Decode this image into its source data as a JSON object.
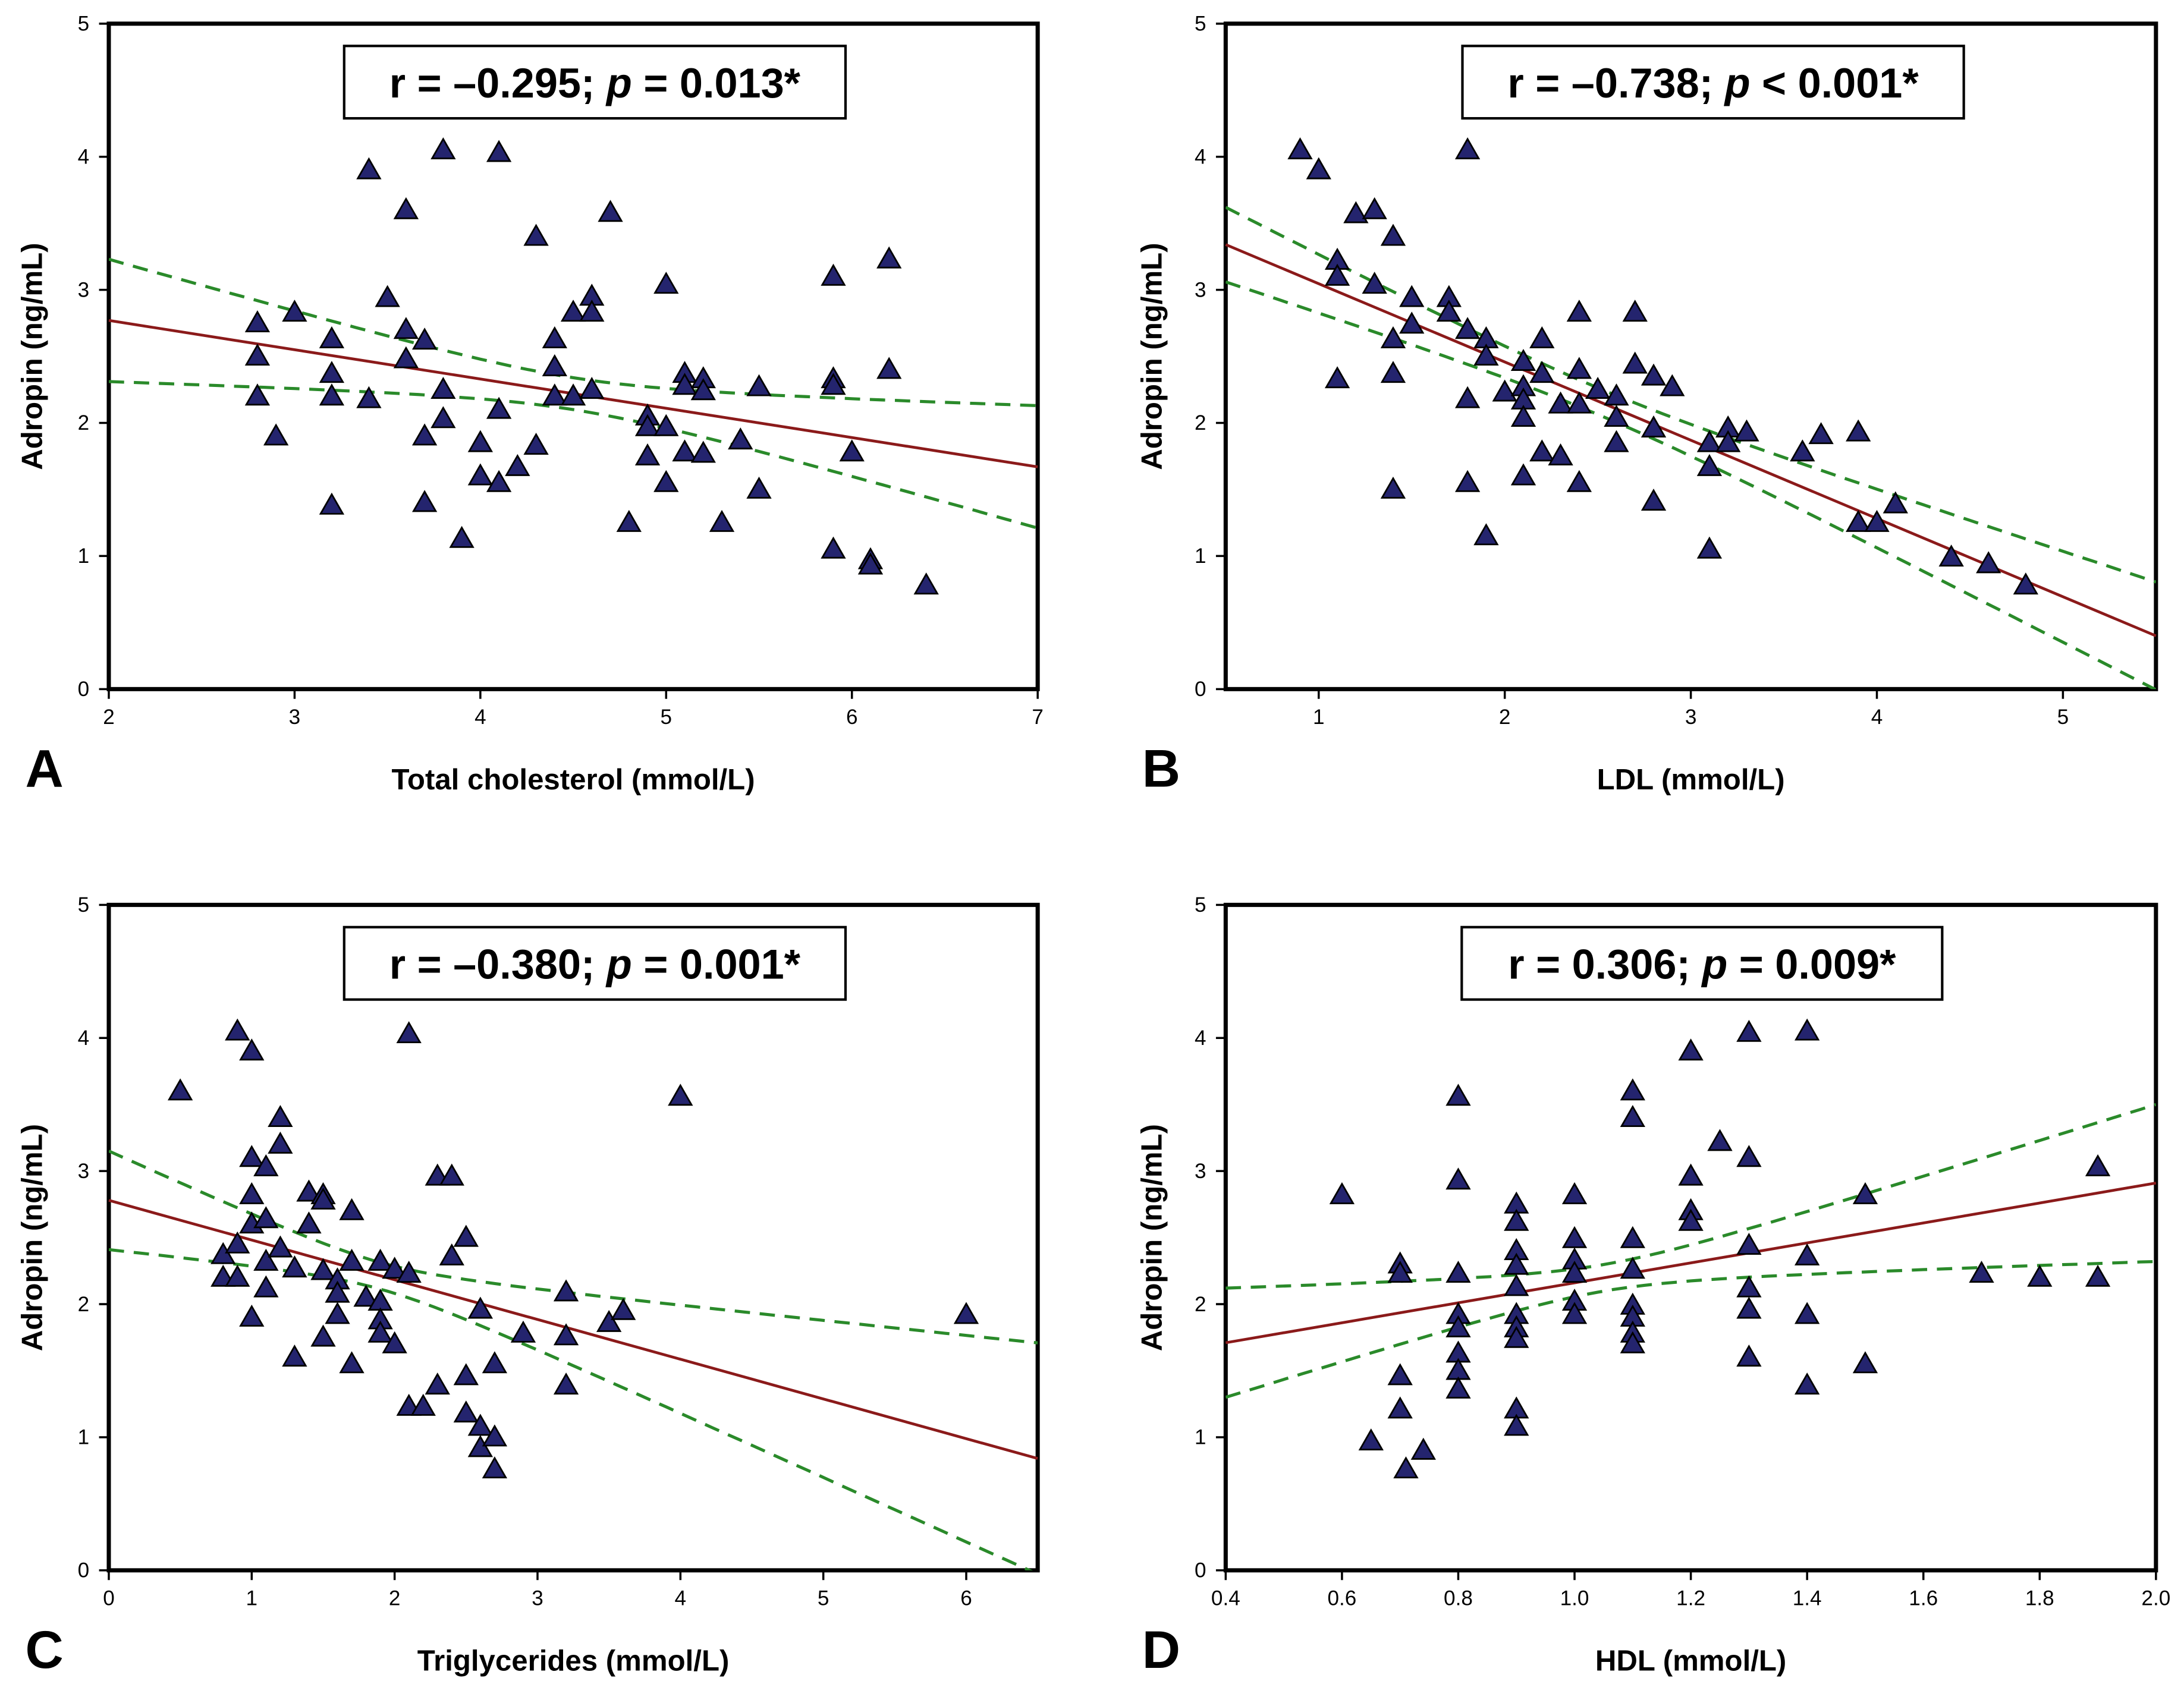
{
  "colors": {
    "marker": "#24246e",
    "marker_edge": "#000000",
    "regression": "#8b1a1a",
    "ci": "#2a8a2a"
  },
  "chart_data": [
    {
      "panel": "A",
      "type": "scatter",
      "xlabel": "Total cholesterol (mmol/L)",
      "ylabel": "Adropin (ng/mL)",
      "xlim": [
        2,
        7
      ],
      "ylim": [
        0,
        5
      ],
      "x_ticks": [
        "2",
        "3",
        "4",
        "5",
        "6",
        "7"
      ],
      "y_ticks": [
        "0",
        "1",
        "2",
        "3",
        "4",
        "5"
      ],
      "annotation": {
        "r_text": "r = –0.295; ",
        "p_symbol": "p",
        "p_text": " = 0.013*"
      },
      "regression": {
        "x": [
          2,
          7
        ],
        "y": [
          2.77,
          1.67
        ]
      },
      "ci_model": {
        "x_mean": 4.5,
        "min_half_width": 0.12,
        "k": 0.0315
      },
      "points": [
        [
          2.8,
          2.75
        ],
        [
          2.8,
          2.5
        ],
        [
          2.8,
          2.2
        ],
        [
          2.9,
          1.9
        ],
        [
          3.0,
          2.83
        ],
        [
          3.2,
          2.63
        ],
        [
          3.2,
          2.37
        ],
        [
          3.2,
          2.2
        ],
        [
          3.2,
          1.38
        ],
        [
          3.4,
          3.9
        ],
        [
          3.4,
          2.18
        ],
        [
          3.5,
          2.94
        ],
        [
          3.6,
          3.6
        ],
        [
          3.6,
          2.7
        ],
        [
          3.6,
          2.48
        ],
        [
          3.7,
          2.62
        ],
        [
          3.7,
          1.9
        ],
        [
          3.7,
          1.4
        ],
        [
          3.8,
          4.05
        ],
        [
          3.8,
          2.25
        ],
        [
          3.8,
          2.03
        ],
        [
          3.9,
          1.13
        ],
        [
          4.0,
          1.85
        ],
        [
          4.0,
          1.6
        ],
        [
          4.1,
          2.1
        ],
        [
          4.1,
          1.55
        ],
        [
          4.1,
          4.03
        ],
        [
          4.2,
          1.67
        ],
        [
          4.3,
          3.4
        ],
        [
          4.3,
          1.83
        ],
        [
          4.4,
          2.63
        ],
        [
          4.4,
          2.42
        ],
        [
          4.4,
          2.2
        ],
        [
          4.5,
          2.83
        ],
        [
          4.5,
          2.2
        ],
        [
          4.6,
          2.95
        ],
        [
          4.6,
          2.83
        ],
        [
          4.6,
          2.25
        ],
        [
          4.7,
          3.58
        ],
        [
          4.8,
          1.25
        ],
        [
          4.9,
          2.05
        ],
        [
          4.9,
          1.97
        ],
        [
          4.9,
          1.75
        ],
        [
          5.0,
          3.04
        ],
        [
          5.0,
          1.97
        ],
        [
          5.0,
          1.55
        ],
        [
          5.1,
          2.37
        ],
        [
          5.1,
          2.28
        ],
        [
          5.1,
          1.78
        ],
        [
          5.2,
          2.33
        ],
        [
          5.2,
          2.24
        ],
        [
          5.2,
          1.77
        ],
        [
          5.3,
          1.25
        ],
        [
          5.4,
          1.87
        ],
        [
          5.5,
          2.27
        ],
        [
          5.5,
          1.5
        ],
        [
          5.9,
          3.1
        ],
        [
          5.9,
          2.33
        ],
        [
          5.9,
          2.28
        ],
        [
          5.9,
          1.05
        ],
        [
          6.0,
          1.78
        ],
        [
          6.1,
          0.97
        ],
        [
          6.1,
          0.93
        ],
        [
          6.2,
          3.23
        ],
        [
          6.2,
          2.4
        ],
        [
          6.4,
          0.78
        ]
      ]
    },
    {
      "panel": "B",
      "type": "scatter",
      "xlabel": "LDL (mmol/L)",
      "ylabel": "Adropin (ng/mL)",
      "xlim": [
        0.5,
        5.5
      ],
      "ylim": [
        0,
        5
      ],
      "x_tick_values": [
        1,
        2,
        3,
        4,
        5
      ],
      "x_ticks": [
        "1",
        "2",
        "3",
        "4",
        "5"
      ],
      "y_ticks": [
        "0",
        "1",
        "2",
        "3",
        "4",
        "5"
      ],
      "annotation": {
        "r_text": "r = –0.738; ",
        "p_symbol": "p",
        "p_text": " < 0.001*"
      },
      "regression": {
        "x": [
          0.5,
          5.5
        ],
        "y": [
          3.34,
          0.4
        ]
      },
      "ci_model": {
        "x_mean": 2.5,
        "min_half_width": 0.1,
        "k": 0.0171
      },
      "points": [
        [
          0.9,
          4.05
        ],
        [
          1.0,
          3.9
        ],
        [
          1.1,
          3.22
        ],
        [
          1.1,
          3.1
        ],
        [
          1.1,
          2.33
        ],
        [
          1.2,
          3.57
        ],
        [
          1.3,
          3.6
        ],
        [
          1.3,
          3.04
        ],
        [
          1.4,
          3.4
        ],
        [
          1.4,
          2.63
        ],
        [
          1.4,
          2.37
        ],
        [
          1.4,
          1.5
        ],
        [
          1.5,
          2.94
        ],
        [
          1.5,
          2.74
        ],
        [
          1.7,
          2.94
        ],
        [
          1.7,
          2.83
        ],
        [
          1.8,
          4.05
        ],
        [
          1.8,
          2.7
        ],
        [
          1.8,
          2.18
        ],
        [
          1.8,
          1.55
        ],
        [
          1.9,
          2.63
        ],
        [
          1.9,
          2.5
        ],
        [
          1.9,
          1.15
        ],
        [
          2.0,
          2.23
        ],
        [
          2.1,
          2.46
        ],
        [
          2.1,
          2.27
        ],
        [
          2.1,
          2.17
        ],
        [
          2.1,
          2.04
        ],
        [
          2.1,
          1.6
        ],
        [
          2.2,
          2.63
        ],
        [
          2.2,
          2.37
        ],
        [
          2.2,
          1.78
        ],
        [
          2.3,
          2.14
        ],
        [
          2.3,
          1.75
        ],
        [
          2.4,
          2.83
        ],
        [
          2.4,
          2.4
        ],
        [
          2.4,
          2.14
        ],
        [
          2.4,
          1.55
        ],
        [
          2.5,
          2.25
        ],
        [
          2.6,
          2.2
        ],
        [
          2.6,
          2.04
        ],
        [
          2.6,
          1.85
        ],
        [
          2.7,
          2.83
        ],
        [
          2.7,
          2.44
        ],
        [
          2.8,
          2.35
        ],
        [
          2.8,
          1.96
        ],
        [
          2.8,
          1.41
        ],
        [
          2.9,
          2.27
        ],
        [
          3.1,
          1.85
        ],
        [
          3.1,
          1.67
        ],
        [
          3.1,
          1.05
        ],
        [
          3.2,
          1.96
        ],
        [
          3.2,
          1.85
        ],
        [
          3.3,
          1.93
        ],
        [
          3.6,
          1.78
        ],
        [
          3.7,
          1.91
        ],
        [
          3.9,
          1.93
        ],
        [
          3.9,
          1.25
        ],
        [
          4.0,
          1.25
        ],
        [
          4.1,
          1.39
        ],
        [
          4.4,
          0.99
        ],
        [
          4.6,
          0.94
        ],
        [
          4.8,
          0.78
        ]
      ]
    },
    {
      "panel": "C",
      "type": "scatter",
      "xlabel": "Triglycerides (mmol/L)",
      "ylabel": "Adropin (ng/mL)",
      "xlim": [
        0,
        6.5
      ],
      "ylim": [
        0,
        5
      ],
      "x_tick_values": [
        0,
        1,
        2,
        3,
        4,
        5,
        6
      ],
      "x_ticks": [
        "0",
        "1",
        "2",
        "3",
        "4",
        "5",
        "6"
      ],
      "y_ticks": [
        "0",
        "1",
        "2",
        "3",
        "4",
        "5"
      ],
      "annotation": {
        "r_text": "r = –0.380; ",
        "p_symbol": "p",
        "p_text": " = 0.001*"
      },
      "regression": {
        "x": [
          0,
          6.5
        ],
        "y": [
          2.78,
          0.84
        ]
      },
      "ci_model": {
        "x_mean": 1.9,
        "min_half_width": 0.1,
        "k": 0.0352
      },
      "points": [
        [
          0.5,
          3.6
        ],
        [
          0.8,
          2.37
        ],
        [
          0.8,
          2.2
        ],
        [
          0.9,
          4.05
        ],
        [
          0.9,
          2.2
        ],
        [
          0.9,
          2.45
        ],
        [
          1.0,
          3.9
        ],
        [
          1.0,
          3.1
        ],
        [
          1.0,
          2.82
        ],
        [
          1.0,
          2.6
        ],
        [
          1.0,
          1.9
        ],
        [
          1.1,
          3.03
        ],
        [
          1.1,
          2.64
        ],
        [
          1.1,
          2.32
        ],
        [
          1.1,
          2.12
        ],
        [
          1.2,
          3.4
        ],
        [
          1.2,
          3.2
        ],
        [
          1.2,
          2.42
        ],
        [
          1.3,
          2.27
        ],
        [
          1.3,
          1.6
        ],
        [
          1.4,
          2.84
        ],
        [
          1.4,
          2.6
        ],
        [
          1.5,
          2.82
        ],
        [
          1.5,
          2.78
        ],
        [
          1.5,
          2.25
        ],
        [
          1.5,
          1.75
        ],
        [
          1.6,
          2.18
        ],
        [
          1.6,
          2.08
        ],
        [
          1.6,
          1.92
        ],
        [
          1.7,
          2.7
        ],
        [
          1.7,
          2.32
        ],
        [
          1.7,
          1.55
        ],
        [
          1.8,
          2.05
        ],
        [
          1.9,
          2.32
        ],
        [
          1.9,
          2.02
        ],
        [
          1.9,
          1.88
        ],
        [
          1.9,
          1.78
        ],
        [
          2.0,
          2.26
        ],
        [
          2.0,
          1.7
        ],
        [
          2.1,
          4.03
        ],
        [
          2.1,
          2.23
        ],
        [
          2.1,
          1.23
        ],
        [
          2.2,
          1.23
        ],
        [
          2.3,
          2.96
        ],
        [
          2.3,
          1.39
        ],
        [
          2.4,
          2.96
        ],
        [
          2.4,
          2.36
        ],
        [
          2.5,
          2.5
        ],
        [
          2.5,
          1.46
        ],
        [
          2.5,
          1.18
        ],
        [
          2.6,
          1.96
        ],
        [
          2.6,
          1.08
        ],
        [
          2.6,
          0.92
        ],
        [
          2.7,
          1.55
        ],
        [
          2.7,
          1.0
        ],
        [
          2.7,
          0.76
        ],
        [
          2.9,
          1.78
        ],
        [
          3.2,
          2.09
        ],
        [
          3.2,
          1.76
        ],
        [
          3.2,
          1.39
        ],
        [
          3.5,
          1.86
        ],
        [
          3.6,
          1.95
        ],
        [
          4.0,
          3.56
        ],
        [
          6.0,
          1.92
        ]
      ]
    },
    {
      "panel": "D",
      "type": "scatter",
      "xlabel": "HDL (mmol/L)",
      "ylabel": "Adropin (ng/mL)",
      "xlim": [
        0.4,
        2.0
      ],
      "ylim": [
        0,
        5
      ],
      "x_tick_values": [
        0.4,
        0.6,
        0.8,
        1.0,
        1.2,
        1.4,
        1.6,
        1.8,
        2.0
      ],
      "x_ticks": [
        "0.4",
        "0.6",
        "0.8",
        "1.0",
        "1.2",
        "1.4",
        "1.6",
        "1.8",
        "2.0"
      ],
      "y_ticks": [
        "0",
        "1",
        "2",
        "3",
        "4",
        "5"
      ],
      "annotation": {
        "r_text": "r = 0.306; ",
        "p_symbol": "p",
        "p_text": " = 0.009*"
      },
      "regression": {
        "x": [
          0.4,
          2.0
        ],
        "y": [
          1.71,
          2.91
        ]
      },
      "ci_model": {
        "x_mean": 1.05,
        "min_half_width": 0.1,
        "k": 0.374
      },
      "points": [
        [
          0.6,
          2.82
        ],
        [
          0.65,
          0.97
        ],
        [
          0.7,
          2.3
        ],
        [
          0.7,
          2.23
        ],
        [
          0.7,
          1.46
        ],
        [
          0.7,
          1.21
        ],
        [
          0.71,
          0.76
        ],
        [
          0.74,
          0.9
        ],
        [
          0.8,
          3.56
        ],
        [
          0.8,
          2.93
        ],
        [
          0.8,
          2.23
        ],
        [
          0.8,
          1.92
        ],
        [
          0.8,
          1.82
        ],
        [
          0.8,
          1.63
        ],
        [
          0.8,
          1.5
        ],
        [
          0.8,
          1.36
        ],
        [
          0.9,
          2.75
        ],
        [
          0.9,
          2.62
        ],
        [
          0.9,
          2.4
        ],
        [
          0.9,
          2.29
        ],
        [
          0.9,
          2.13
        ],
        [
          0.9,
          1.92
        ],
        [
          0.9,
          1.82
        ],
        [
          0.9,
          1.74
        ],
        [
          0.9,
          1.21
        ],
        [
          0.9,
          1.08
        ],
        [
          1.0,
          2.82
        ],
        [
          1.0,
          2.49
        ],
        [
          1.0,
          2.33
        ],
        [
          1.0,
          2.23
        ],
        [
          1.0,
          2.02
        ],
        [
          1.0,
          1.92
        ],
        [
          1.1,
          3.6
        ],
        [
          1.1,
          3.4
        ],
        [
          1.1,
          2.49
        ],
        [
          1.1,
          2.26
        ],
        [
          1.1,
          1.99
        ],
        [
          1.1,
          1.9
        ],
        [
          1.1,
          1.78
        ],
        [
          1.1,
          1.7
        ],
        [
          1.2,
          3.9
        ],
        [
          1.2,
          2.96
        ],
        [
          1.2,
          2.7
        ],
        [
          1.2,
          2.62
        ],
        [
          1.25,
          3.22
        ],
        [
          1.3,
          4.04
        ],
        [
          1.3,
          3.1
        ],
        [
          1.3,
          2.44
        ],
        [
          1.3,
          2.12
        ],
        [
          1.3,
          1.96
        ],
        [
          1.3,
          1.6
        ],
        [
          1.4,
          4.05
        ],
        [
          1.4,
          2.36
        ],
        [
          1.4,
          1.92
        ],
        [
          1.4,
          1.39
        ],
        [
          1.5,
          2.82
        ],
        [
          1.5,
          1.55
        ],
        [
          1.7,
          2.23
        ],
        [
          1.8,
          2.2
        ],
        [
          1.9,
          2.2
        ],
        [
          1.9,
          3.03
        ]
      ]
    }
  ]
}
